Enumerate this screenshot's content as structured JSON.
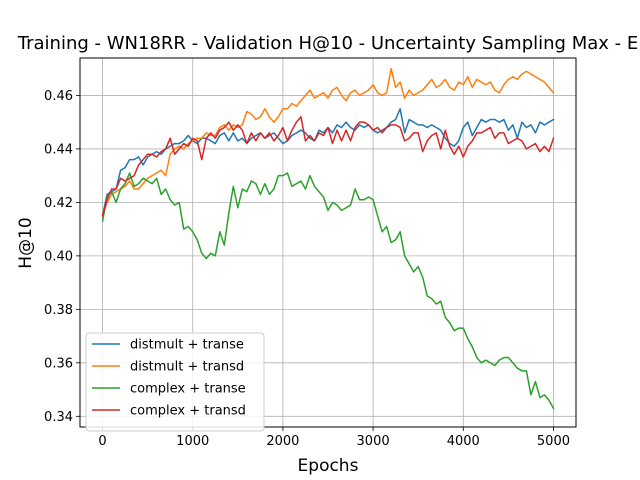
{
  "chart_data": {
    "type": "line",
    "title": "Training - WN18RR - Validation H@10 - Uncertainty Sampling Max - E",
    "xlabel": "Epochs",
    "ylabel": "H@10",
    "xlim": [
      -250,
      5250
    ],
    "ylim": [
      0.336,
      0.474
    ],
    "x_ticks": [
      0,
      1000,
      2000,
      3000,
      4000,
      5000
    ],
    "x_tick_labels": [
      "0",
      "1000",
      "2000",
      "3000",
      "4000",
      "5000"
    ],
    "y_ticks": [
      0.34,
      0.36,
      0.38,
      0.4,
      0.42,
      0.44,
      0.46
    ],
    "y_tick_labels": [
      "0.34",
      "0.36",
      "0.38",
      "0.40",
      "0.42",
      "0.44",
      "0.46"
    ],
    "grid": true,
    "legend_position": "lower-left",
    "x": [
      0,
      50,
      100,
      150,
      200,
      250,
      300,
      350,
      400,
      450,
      500,
      550,
      600,
      650,
      700,
      750,
      800,
      850,
      900,
      950,
      1000,
      1050,
      1100,
      1150,
      1200,
      1250,
      1300,
      1350,
      1400,
      1450,
      1500,
      1550,
      1600,
      1650,
      1700,
      1750,
      1800,
      1850,
      1900,
      1950,
      2000,
      2050,
      2100,
      2150,
      2200,
      2250,
      2300,
      2350,
      2400,
      2450,
      2500,
      2550,
      2600,
      2650,
      2700,
      2750,
      2800,
      2850,
      2900,
      2950,
      3000,
      3050,
      3100,
      3150,
      3200,
      3250,
      3300,
      3350,
      3400,
      3450,
      3500,
      3550,
      3600,
      3650,
      3700,
      3750,
      3800,
      3850,
      3900,
      3950,
      4000,
      4050,
      4100,
      4150,
      4200,
      4250,
      4300,
      4350,
      4400,
      4450,
      4500,
      4550,
      4600,
      4650,
      4700,
      4750,
      4800,
      4850,
      4900,
      4950,
      5000
    ],
    "series": [
      {
        "name": "distmult + transe",
        "color": "#1f77b4",
        "values": [
          0.415,
          0.423,
          0.424,
          0.425,
          0.432,
          0.433,
          0.436,
          0.436,
          0.437,
          0.434,
          0.437,
          0.438,
          0.439,
          0.438,
          0.44,
          0.441,
          0.442,
          0.442,
          0.443,
          0.445,
          0.443,
          0.442,
          0.444,
          0.444,
          0.443,
          0.442,
          0.445,
          0.446,
          0.443,
          0.446,
          0.443,
          0.444,
          0.442,
          0.444,
          0.445,
          0.446,
          0.444,
          0.445,
          0.446,
          0.444,
          0.442,
          0.443,
          0.445,
          0.446,
          0.447,
          0.446,
          0.444,
          0.443,
          0.447,
          0.446,
          0.448,
          0.446,
          0.449,
          0.448,
          0.45,
          0.448,
          0.447,
          0.449,
          0.448,
          0.449,
          0.447,
          0.446,
          0.447,
          0.448,
          0.45,
          0.451,
          0.455,
          0.446,
          0.451,
          0.45,
          0.449,
          0.449,
          0.448,
          0.449,
          0.448,
          0.447,
          0.444,
          0.442,
          0.441,
          0.443,
          0.448,
          0.45,
          0.445,
          0.448,
          0.451,
          0.45,
          0.451,
          0.451,
          0.45,
          0.451,
          0.447,
          0.449,
          0.444,
          0.45,
          0.448,
          0.449,
          0.446,
          0.45,
          0.449,
          0.45,
          0.451
        ]
      },
      {
        "name": "distmult + transd",
        "color": "#ff7f0e",
        "values": [
          0.415,
          0.42,
          0.423,
          0.424,
          0.425,
          0.426,
          0.428,
          0.425,
          0.425,
          0.427,
          0.429,
          0.43,
          0.431,
          0.432,
          0.43,
          0.438,
          0.44,
          0.441,
          0.44,
          0.442,
          0.443,
          0.444,
          0.444,
          0.446,
          0.445,
          0.445,
          0.448,
          0.449,
          0.447,
          0.449,
          0.448,
          0.449,
          0.454,
          0.453,
          0.451,
          0.452,
          0.455,
          0.452,
          0.45,
          0.452,
          0.455,
          0.455,
          0.457,
          0.456,
          0.458,
          0.46,
          0.462,
          0.459,
          0.46,
          0.461,
          0.459,
          0.462,
          0.463,
          0.46,
          0.458,
          0.461,
          0.462,
          0.46,
          0.461,
          0.462,
          0.464,
          0.461,
          0.46,
          0.461,
          0.47,
          0.463,
          0.465,
          0.459,
          0.462,
          0.46,
          0.461,
          0.462,
          0.464,
          0.466,
          0.463,
          0.464,
          0.466,
          0.463,
          0.462,
          0.465,
          0.464,
          0.467,
          0.463,
          0.466,
          0.465,
          0.464,
          0.465,
          0.462,
          0.461,
          0.464,
          0.466,
          0.467,
          0.466,
          0.468,
          0.469,
          0.468,
          0.467,
          0.466,
          0.465,
          0.463,
          0.461
        ]
      },
      {
        "name": "complex + transe",
        "color": "#2ca02c",
        "values": [
          0.413,
          0.422,
          0.424,
          0.42,
          0.425,
          0.427,
          0.431,
          0.426,
          0.427,
          0.429,
          0.428,
          0.427,
          0.429,
          0.423,
          0.425,
          0.421,
          0.419,
          0.42,
          0.41,
          0.411,
          0.409,
          0.406,
          0.401,
          0.399,
          0.401,
          0.4,
          0.409,
          0.404,
          0.416,
          0.426,
          0.418,
          0.425,
          0.424,
          0.428,
          0.427,
          0.423,
          0.427,
          0.423,
          0.425,
          0.43,
          0.43,
          0.431,
          0.426,
          0.427,
          0.428,
          0.425,
          0.43,
          0.426,
          0.424,
          0.422,
          0.417,
          0.42,
          0.419,
          0.417,
          0.418,
          0.419,
          0.425,
          0.421,
          0.421,
          0.422,
          0.421,
          0.415,
          0.409,
          0.411,
          0.405,
          0.406,
          0.409,
          0.4,
          0.397,
          0.394,
          0.396,
          0.392,
          0.385,
          0.384,
          0.382,
          0.383,
          0.377,
          0.375,
          0.372,
          0.373,
          0.373,
          0.369,
          0.366,
          0.362,
          0.36,
          0.361,
          0.36,
          0.359,
          0.361,
          0.362,
          0.362,
          0.36,
          0.358,
          0.357,
          0.357,
          0.348,
          0.353,
          0.347,
          0.348,
          0.346,
          0.343
        ]
      },
      {
        "name": "complex + transd",
        "color": "#d62728",
        "values": [
          0.415,
          0.421,
          0.425,
          0.425,
          0.429,
          0.428,
          0.429,
          0.43,
          0.434,
          0.436,
          0.438,
          0.438,
          0.437,
          0.439,
          0.44,
          0.444,
          0.438,
          0.44,
          0.442,
          0.441,
          0.444,
          0.443,
          0.436,
          0.444,
          0.446,
          0.444,
          0.447,
          0.448,
          0.45,
          0.447,
          0.449,
          0.447,
          0.442,
          0.446,
          0.443,
          0.446,
          0.444,
          0.446,
          0.443,
          0.445,
          0.448,
          0.443,
          0.447,
          0.45,
          0.452,
          0.443,
          0.445,
          0.443,
          0.446,
          0.445,
          0.448,
          0.442,
          0.447,
          0.443,
          0.447,
          0.443,
          0.448,
          0.45,
          0.45,
          0.449,
          0.447,
          0.448,
          0.446,
          0.448,
          0.449,
          0.449,
          0.448,
          0.443,
          0.444,
          0.446,
          0.446,
          0.439,
          0.443,
          0.445,
          0.446,
          0.44,
          0.447,
          0.441,
          0.438,
          0.441,
          0.437,
          0.441,
          0.443,
          0.446,
          0.446,
          0.447,
          0.448,
          0.444,
          0.446,
          0.446,
          0.442,
          0.443,
          0.444,
          0.443,
          0.44,
          0.441,
          0.442,
          0.439,
          0.441,
          0.439,
          0.444
        ]
      }
    ]
  }
}
